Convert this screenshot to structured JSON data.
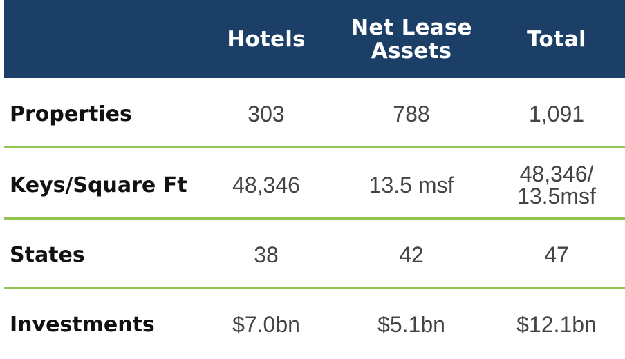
{
  "table": {
    "columns": [
      "Hotels",
      "Net Lease Assets",
      "Total"
    ],
    "header_lines": [
      [
        "Hotels"
      ],
      [
        "Net Lease",
        "Assets"
      ],
      [
        "Total"
      ]
    ],
    "rows": [
      {
        "label": "Properties",
        "values": [
          [
            "303"
          ],
          [
            "788"
          ],
          [
            "1,091"
          ]
        ]
      },
      {
        "label": "Keys/Square Ft",
        "values": [
          [
            "48,346"
          ],
          [
            "13.5 msf"
          ],
          [
            "48,346/",
            "13.5msf"
          ]
        ]
      },
      {
        "label": "States",
        "values": [
          [
            "38"
          ],
          [
            "42"
          ],
          [
            "47"
          ]
        ]
      },
      {
        "label": "Investments",
        "values": [
          [
            "$7.0bn"
          ],
          [
            "$5.1bn"
          ],
          [
            "$12.1bn"
          ]
        ]
      }
    ]
  },
  "colors": {
    "header_bg": "#1b3f66",
    "header_text": "#ffffff",
    "divider": "#93c353",
    "label_text": "#111111",
    "value_text": "#444444"
  }
}
